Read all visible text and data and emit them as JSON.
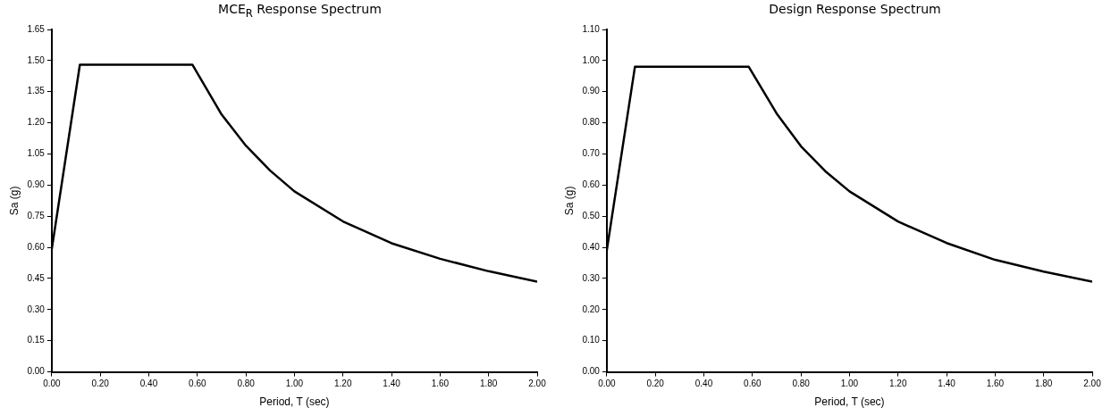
{
  "chart_data": [
    {
      "type": "line",
      "title": "MCE$_{R}$ Response Spectrum",
      "xlabel": "Period, T (sec)",
      "ylabel": "Sa (g)",
      "x": [
        0,
        0.116,
        0.58,
        0.7,
        0.8,
        0.9,
        1.0,
        1.2,
        1.4,
        1.6,
        1.8,
        2.0
      ],
      "series": [
        {
          "color": "#000000",
          "values": [
            0.59,
            1.48,
            1.48,
            1.24,
            1.09,
            0.97,
            0.87,
            0.725,
            0.62,
            0.545,
            0.485,
            0.435
          ]
        }
      ],
      "xlim": [
        0,
        2
      ],
      "xticks": [
        {
          "value": 0,
          "label": "0.00"
        },
        {
          "value": 0.2,
          "label": "0.20"
        },
        {
          "value": 0.4,
          "label": "0.40"
        },
        {
          "value": 0.6,
          "label": "0.60"
        },
        {
          "value": 0.8,
          "label": "0.80"
        },
        {
          "value": 1,
          "label": "1.00"
        },
        {
          "value": 1.2,
          "label": "1.20"
        },
        {
          "value": 1.4,
          "label": "1.40"
        },
        {
          "value": 1.6,
          "label": "1.60"
        },
        {
          "value": 1.8,
          "label": "1.80"
        },
        {
          "value": 2,
          "label": "2.00"
        }
      ],
      "ylim": [
        0,
        1.65
      ],
      "yticks": [
        {
          "value": 0,
          "label": "0.00"
        },
        {
          "value": 0.15,
          "label": "0.15"
        },
        {
          "value": 0.3,
          "label": "0.30"
        },
        {
          "value": 0.45,
          "label": "0.45"
        },
        {
          "value": 0.6,
          "label": "0.60"
        },
        {
          "value": 0.75,
          "label": "0.75"
        },
        {
          "value": 0.9,
          "label": "0.90"
        },
        {
          "value": 1.05,
          "label": "1.05"
        },
        {
          "value": 1.2,
          "label": "1.20"
        },
        {
          "value": 1.35,
          "label": "1.35"
        },
        {
          "value": 1.5,
          "label": "1.50"
        },
        {
          "value": 1.65,
          "label": "1.65"
        }
      ],
      "grid": false,
      "legend": false,
      "marker": "none",
      "line_style": "solid"
    },
    {
      "type": "line",
      "title": "Design Response Spectrum",
      "xlabel": "Period, T (sec)",
      "ylabel": "Sa (g)",
      "x": [
        0,
        0.116,
        0.585,
        0.7,
        0.8,
        0.9,
        1.0,
        1.2,
        1.4,
        1.6,
        1.8,
        2.0
      ],
      "series": [
        {
          "color": "#000000",
          "values": [
            0.39,
            0.98,
            0.98,
            0.83,
            0.725,
            0.645,
            0.58,
            0.483,
            0.414,
            0.36,
            0.322,
            0.29
          ]
        }
      ],
      "xlim": [
        0,
        2
      ],
      "xticks": [
        {
          "value": 0,
          "label": "0.00"
        },
        {
          "value": 0.2,
          "label": "0.20"
        },
        {
          "value": 0.4,
          "label": "0.40"
        },
        {
          "value": 0.6,
          "label": "0.60"
        },
        {
          "value": 0.8,
          "label": "0.80"
        },
        {
          "value": 1,
          "label": "1.00"
        },
        {
          "value": 1.2,
          "label": "1.20"
        },
        {
          "value": 1.4,
          "label": "1.40"
        },
        {
          "value": 1.6,
          "label": "1.60"
        },
        {
          "value": 1.8,
          "label": "1.80"
        },
        {
          "value": 2,
          "label": "2.00"
        }
      ],
      "ylim": [
        0,
        1.1
      ],
      "yticks": [
        {
          "value": 0,
          "label": "0.00"
        },
        {
          "value": 0.1,
          "label": "0.10"
        },
        {
          "value": 0.2,
          "label": "0.20"
        },
        {
          "value": 0.3,
          "label": "0.30"
        },
        {
          "value": 0.4,
          "label": "0.40"
        },
        {
          "value": 0.5,
          "label": "0.50"
        },
        {
          "value": 0.6,
          "label": "0.60"
        },
        {
          "value": 0.7,
          "label": "0.70"
        },
        {
          "value": 0.8,
          "label": "0.80"
        },
        {
          "value": 0.9,
          "label": "0.90"
        },
        {
          "value": 1,
          "label": "1.00"
        },
        {
          "value": 1.1,
          "label": "1.10"
        }
      ],
      "grid": false,
      "legend": false,
      "marker": "none",
      "line_style": "solid"
    }
  ]
}
